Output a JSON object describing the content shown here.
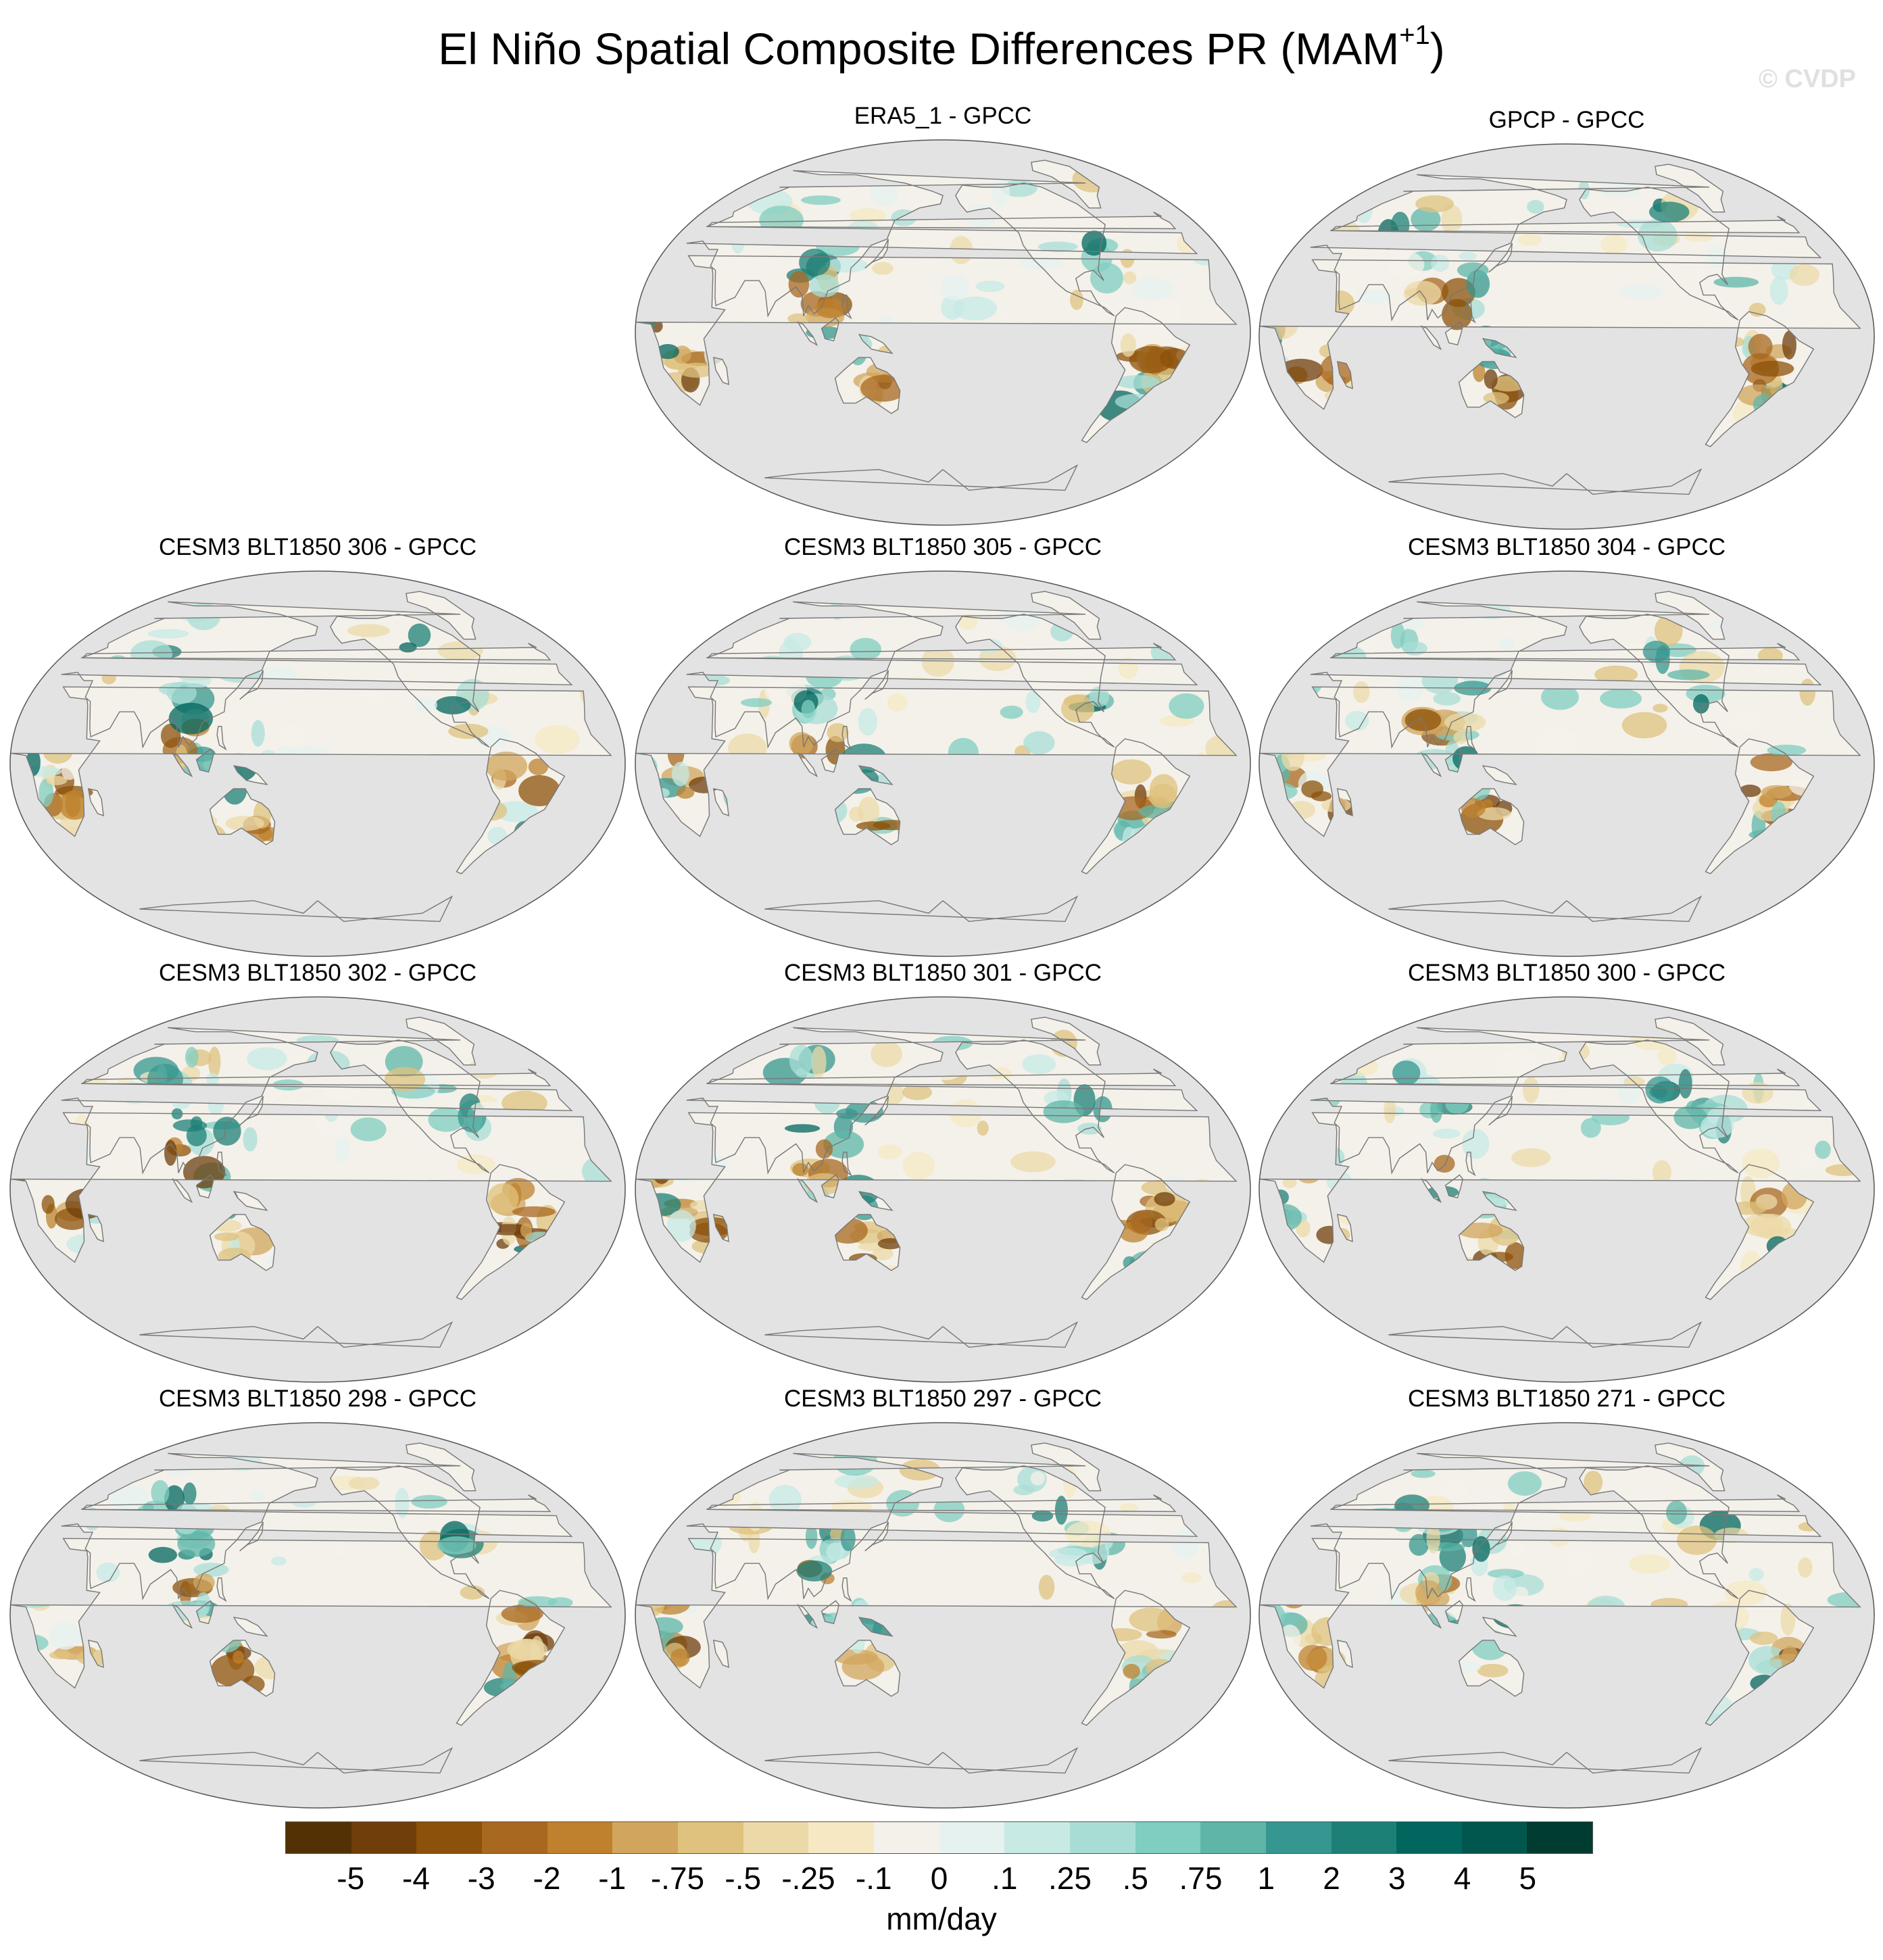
{
  "figure": {
    "title": "El Niño Spatial Composite Differences PR (MAM",
    "title_superscript": "+1",
    "title_suffix": ")",
    "credit": "© CVDP"
  },
  "panels": [
    {
      "title": "ERA5_1 - GPCC",
      "seed": 11
    },
    {
      "title": "GPCP - GPCC",
      "seed": 23
    },
    {
      "title": "CESM3 BLT1850 306 - GPCC",
      "seed": 37
    },
    {
      "title": "CESM3 BLT1850 305 - GPCC",
      "seed": 41
    },
    {
      "title": "CESM3 BLT1850 304 - GPCC",
      "seed": 53
    },
    {
      "title": "CESM3 BLT1850 302 - GPCC",
      "seed": 67
    },
    {
      "title": "CESM3 BLT1850 301 - GPCC",
      "seed": 71
    },
    {
      "title": "CESM3 BLT1850 300 - GPCC",
      "seed": 83
    },
    {
      "title": "CESM3 BLT1850 298 - GPCC",
      "seed": 97
    },
    {
      "title": "CESM3 BLT1850 297 - GPCC",
      "seed": 101
    },
    {
      "title": "CESM3 BLT1850 271 - GPCC",
      "seed": 113
    }
  ],
  "colorbar": {
    "units": "mm/day",
    "labels": [
      "-5",
      "-4",
      "-3",
      "-2",
      "-1",
      "-.75",
      "-.5",
      "-.25",
      "-.1",
      "0",
      ".1",
      ".25",
      ".5",
      ".75",
      "1",
      "2",
      "3",
      "4",
      "5"
    ],
    "colors": [
      "#543005",
      "#6f3e0b",
      "#8c510a",
      "#a86820",
      "#bf812d",
      "#d2a55e",
      "#dfc27d",
      "#ecd9a8",
      "#f6e8c3",
      "#f4f1ea",
      "#e6f2ef",
      "#c7eae5",
      "#a8ddd5",
      "#80cdc1",
      "#5fb5a8",
      "#35978f",
      "#1d8077",
      "#01665e",
      "#01574e",
      "#003c30"
    ]
  },
  "map_style": {
    "ocean_color": "#e3e3e3",
    "coast_color": "#777777",
    "land_base_color": "#f4f1ea"
  }
}
